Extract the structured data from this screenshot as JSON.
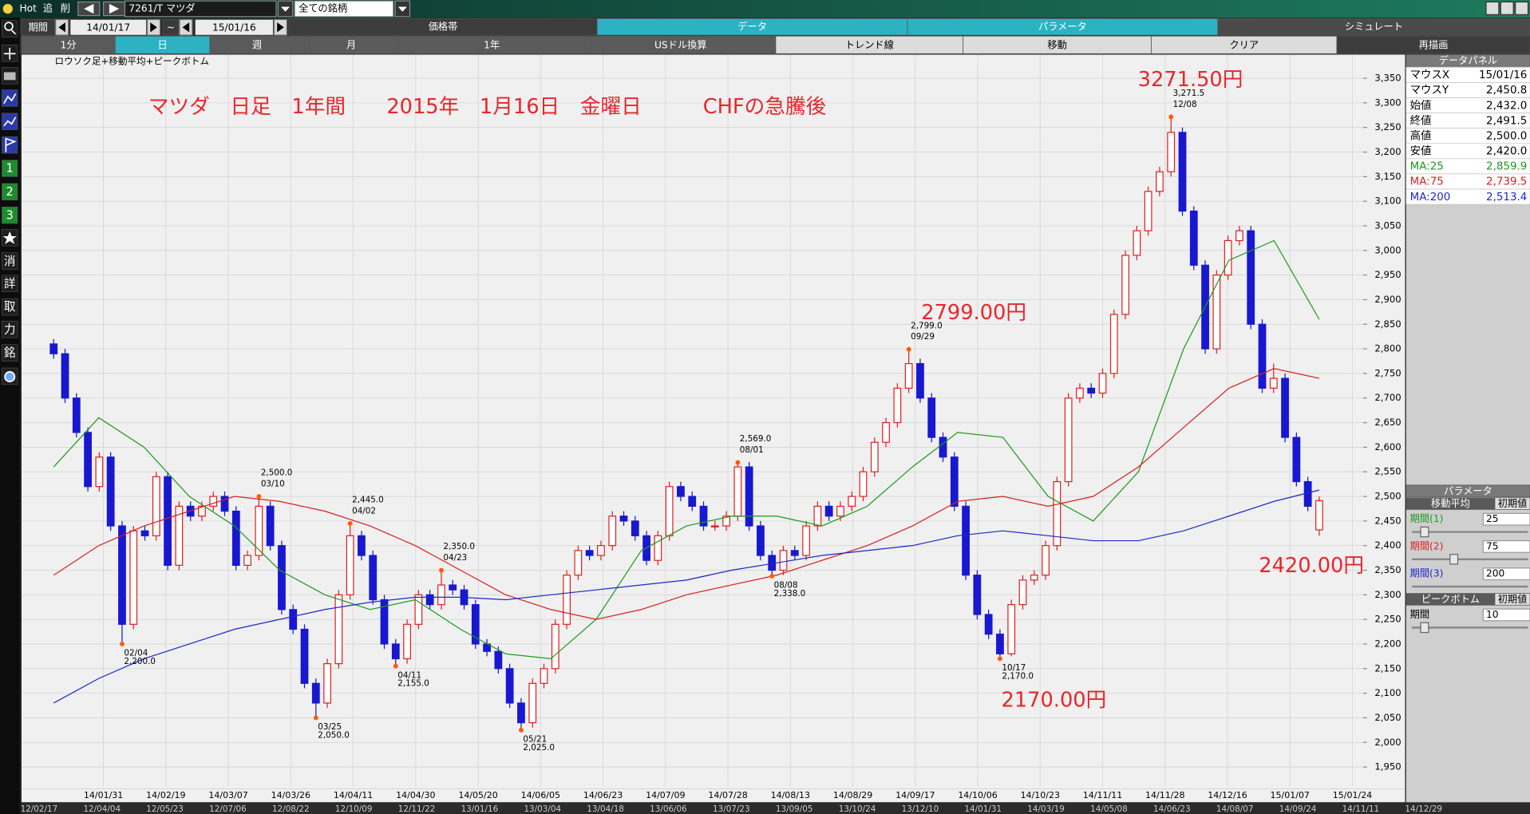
{
  "toolbar": {
    "hot": "Hot",
    "add": "追",
    "delete": "削",
    "symbol": "7261/T マツダ",
    "universe": "全ての銘柄",
    "period_label": "期間",
    "start": "14/01/17",
    "tilde": "~",
    "end": "15/01/16"
  },
  "tabs": [
    "価格帯",
    "データ",
    "パラメータ",
    "シミュレート"
  ],
  "buttons": [
    "1分",
    "日",
    "週",
    "月",
    "1年",
    "USドル換算",
    "トレンド線",
    "移動",
    "クリア",
    "再描画"
  ],
  "sidebar": [
    "1",
    "2",
    "3",
    "消",
    "詳",
    "取",
    "力",
    "銘"
  ],
  "chart_data": {
    "type": "candlestick",
    "subtitle": "ロウソク足+移動平均+ピークボトム",
    "annotations": [
      "マツダ　日足　1年間　　2015年　1月16日　金曜日　　　CHFの急騰後",
      "3271.50円",
      "2799.00円",
      "2170.00円",
      "2420.00円"
    ],
    "xtick_labels": [
      "14/01/31",
      "14/02/19",
      "14/03/07",
      "14/03/26",
      "14/04/11",
      "14/04/30",
      "14/05/20",
      "14/06/05",
      "14/06/23",
      "14/07/09",
      "14/07/28",
      "14/08/13",
      "14/08/29",
      "14/09/17",
      "14/10/06",
      "14/10/23",
      "14/11/11",
      "14/11/28",
      "14/12/16",
      "15/01/07",
      "15/01/24"
    ],
    "ylim": [
      1910,
      3394
    ],
    "yticks": [
      {
        "value": 1950,
        "label": "1,950"
      },
      {
        "value": 2000,
        "label": "2,000"
      },
      {
        "value": 2050,
        "label": "2,050"
      },
      {
        "value": 2100,
        "label": "2,100"
      },
      {
        "value": 2150,
        "label": "2,150"
      },
      {
        "value": 2200,
        "label": "2,200"
      },
      {
        "value": 2250,
        "label": "2,250"
      },
      {
        "value": 2300,
        "label": "2,300"
      },
      {
        "value": 2350,
        "label": "2,350"
      },
      {
        "value": 2400,
        "label": "2,400"
      },
      {
        "value": 2450,
        "label": "2,450"
      },
      {
        "value": 2500,
        "label": "2,500"
      },
      {
        "value": 2550,
        "label": "2,550"
      },
      {
        "value": 2600,
        "label": "2,600"
      },
      {
        "value": 2650,
        "label": "2,650"
      },
      {
        "value": 2700,
        "label": "2,700"
      },
      {
        "value": 2750,
        "label": "2,750"
      },
      {
        "value": 2800,
        "label": "2,800"
      },
      {
        "value": 2850,
        "label": "2,850"
      },
      {
        "value": 2900,
        "label": "2,900"
      },
      {
        "value": 2950,
        "label": "2,950"
      },
      {
        "value": 3000,
        "label": "3,000"
      },
      {
        "value": 3050,
        "label": "3,050"
      },
      {
        "value": 3100,
        "label": "3,100"
      },
      {
        "value": 3150,
        "label": "3,150"
      },
      {
        "value": 3200,
        "label": "3,200"
      },
      {
        "value": 3250,
        "label": "3,250"
      },
      {
        "value": 3300,
        "label": "3,300"
      },
      {
        "value": 3350,
        "label": "3,350"
      }
    ],
    "grid": true,
    "up_color": "#e02020",
    "down_color": "#1818d0",
    "candles": {
      "open": [
        2810,
        2790,
        2700,
        2630,
        2520,
        2580,
        2440,
        2240,
        2430,
        2420,
        2540,
        2360,
        2480,
        2460,
        2480,
        2500,
        2470,
        2360,
        2380,
        2480,
        2400,
        2270,
        2230,
        2120,
        2080,
        2160,
        2300,
        2420,
        2380,
        2290,
        2200,
        2170,
        2240,
        2300,
        2280,
        2320,
        2310,
        2280,
        2200,
        2185,
        2150,
        2080,
        2040,
        2120,
        2150,
        2240,
        2340,
        2390,
        2380,
        2400,
        2460,
        2450,
        2420,
        2370,
        2420,
        2520,
        2500,
        2480,
        2440,
        2440,
        2460,
        2560,
        2440,
        2380,
        2350,
        2390,
        2380,
        2440,
        2480,
        2460,
        2480,
        2500,
        2550,
        2610,
        2650,
        2720,
        2770,
        2700,
        2620,
        2580,
        2480,
        2340,
        2260,
        2220,
        2180,
        2280,
        2330,
        2340,
        2400,
        2530,
        2700,
        2720,
        2710,
        2750,
        2870,
        2990,
        3040,
        3120,
        3160,
        3240,
        3080,
        2970,
        2800,
        2950,
        3020,
        3040,
        2850,
        2720,
        2740,
        2620,
        2530,
        2432
      ],
      "high": [
        2820,
        2800,
        2710,
        2640,
        2590,
        2590,
        2450,
        2440,
        2440,
        2550,
        2550,
        2490,
        2490,
        2490,
        2510,
        2510,
        2480,
        2390,
        2500,
        2490,
        2410,
        2280,
        2240,
        2130,
        2170,
        2310,
        2445,
        2430,
        2390,
        2300,
        2210,
        2250,
        2310,
        2310,
        2350,
        2330,
        2320,
        2290,
        2210,
        2195,
        2160,
        2090,
        2130,
        2160,
        2250,
        2350,
        2400,
        2400,
        2410,
        2470,
        2470,
        2460,
        2430,
        2430,
        2530,
        2530,
        2510,
        2490,
        2450,
        2470,
        2569,
        2570,
        2450,
        2390,
        2400,
        2400,
        2450,
        2490,
        2490,
        2490,
        2510,
        2560,
        2620,
        2660,
        2730,
        2799,
        2780,
        2710,
        2630,
        2590,
        2490,
        2350,
        2270,
        2230,
        2290,
        2340,
        2350,
        2410,
        2540,
        2710,
        2730,
        2730,
        2760,
        2880,
        3000,
        3050,
        3130,
        3170,
        3271.5,
        3250,
        3090,
        2980,
        2960,
        3030,
        3050,
        3050,
        2860,
        2770,
        2750,
        2630,
        2540,
        2500
      ],
      "low": [
        2780,
        2690,
        2620,
        2510,
        2510,
        2430,
        2200,
        2230,
        2410,
        2410,
        2350,
        2350,
        2450,
        2450,
        2470,
        2460,
        2350,
        2350,
        2370,
        2390,
        2260,
        2220,
        2110,
        2050,
        2070,
        2150,
        2290,
        2370,
        2280,
        2190,
        2155,
        2160,
        2230,
        2270,
        2270,
        2300,
        2270,
        2190,
        2175,
        2140,
        2070,
        2025,
        2030,
        2110,
        2140,
        2230,
        2330,
        2370,
        2370,
        2390,
        2440,
        2410,
        2360,
        2360,
        2410,
        2490,
        2470,
        2430,
        2430,
        2430,
        2450,
        2430,
        2370,
        2338,
        2340,
        2370,
        2370,
        2430,
        2450,
        2450,
        2470,
        2490,
        2540,
        2600,
        2640,
        2710,
        2690,
        2610,
        2570,
        2470,
        2330,
        2250,
        2210,
        2170,
        2175,
        2270,
        2320,
        2330,
        2390,
        2520,
        2690,
        2700,
        2700,
        2740,
        2860,
        2980,
        3030,
        3110,
        3150,
        3070,
        2960,
        2790,
        2790,
        2940,
        3010,
        2840,
        2710,
        2710,
        2610,
        2520,
        2470,
        2420
      ],
      "close": [
        2790,
        2700,
        2630,
        2520,
        2580,
        2440,
        2240,
        2430,
        2420,
        2540,
        2360,
        2480,
        2460,
        2480,
        2500,
        2470,
        2360,
        2380,
        2480,
        2400,
        2270,
        2230,
        2120,
        2080,
        2160,
        2300,
        2420,
        2380,
        2290,
        2200,
        2170,
        2240,
        2300,
        2280,
        2320,
        2310,
        2280,
        2200,
        2185,
        2150,
        2080,
        2040,
        2120,
        2150,
        2240,
        2340,
        2390,
        2380,
        2400,
        2460,
        2450,
        2420,
        2370,
        2420,
        2520,
        2500,
        2480,
        2440,
        2440,
        2460,
        2560,
        2440,
        2380,
        2350,
        2390,
        2380,
        2440,
        2480,
        2460,
        2480,
        2500,
        2550,
        2610,
        2650,
        2720,
        2770,
        2700,
        2620,
        2580,
        2480,
        2340,
        2260,
        2220,
        2180,
        2280,
        2330,
        2340,
        2400,
        2530,
        2700,
        2720,
        2710,
        2750,
        2870,
        2990,
        3040,
        3120,
        3160,
        3240,
        3080,
        2970,
        2800,
        2950,
        3020,
        3040,
        2850,
        2720,
        2740,
        2620,
        2530,
        2480,
        2491.5
      ]
    },
    "series": [
      {
        "color": "#1c9a1c",
        "values": [
          2560,
          2660,
          2600,
          2500,
          2440,
          2350,
          2300,
          2270,
          2290,
          2230,
          2180,
          2170,
          2250,
          2390,
          2440,
          2460,
          2460,
          2440,
          2480,
          2560,
          2630,
          2620,
          2500,
          2450,
          2550,
          2800,
          2980,
          3020,
          2860
        ]
      },
      {
        "color": "#d82020",
        "values": [
          2340,
          2400,
          2440,
          2470,
          2500,
          2490,
          2470,
          2440,
          2400,
          2350,
          2300,
          2270,
          2250,
          2270,
          2300,
          2320,
          2340,
          2370,
          2400,
          2440,
          2490,
          2500,
          2480,
          2500,
          2560,
          2640,
          2720,
          2760,
          2740
        ]
      },
      {
        "color": "#1c28c8",
        "values": [
          2080,
          2130,
          2170,
          2200,
          2230,
          2250,
          2270,
          2285,
          2295,
          2295,
          2290,
          2300,
          2310,
          2320,
          2330,
          2350,
          2365,
          2380,
          2390,
          2400,
          2420,
          2430,
          2420,
          2410,
          2410,
          2430,
          2460,
          2490,
          2513
        ]
      }
    ],
    "peaks": [
      {
        "date": "03/10",
        "value": 2500,
        "label": "2,500.0"
      },
      {
        "date": "04/02",
        "value": 2445,
        "label": "2,445.0"
      },
      {
        "date": "04/23",
        "value": 2350,
        "label": "2,350.0"
      },
      {
        "date": "08/01",
        "value": 2569,
        "label": "2,569.0"
      },
      {
        "date": "09/29",
        "value": 2799,
        "label": "2,799.0"
      },
      {
        "date": "12/08",
        "value": 3271.5,
        "label": "3,271.5"
      }
    ],
    "bottoms": [
      {
        "date": "02/04",
        "value": 2200,
        "label": "2,200.0"
      },
      {
        "date": "03/25",
        "value": 2050,
        "label": "2,050.0"
      },
      {
        "date": "04/11",
        "value": 2155,
        "label": "2,155.0"
      },
      {
        "date": "05/21",
        "value": 2025,
        "label": "2,025.0"
      },
      {
        "date": "08/08",
        "value": 2338,
        "label": "2,338.0"
      },
      {
        "date": "10/17",
        "value": 2170,
        "label": "2,170.0"
      }
    ]
  },
  "overview_dates": [
    "12/02/17",
    "12/04/04",
    "12/05/23",
    "12/07/06",
    "12/08/22",
    "12/10/09",
    "12/11/22",
    "13/01/16",
    "13/03/04",
    "13/04/18",
    "13/06/06",
    "13/07/23",
    "13/09/05",
    "13/10/24",
    "13/12/10",
    "14/01/31",
    "14/03/19",
    "14/05/08",
    "14/06/23",
    "14/08/07",
    "14/09/24",
    "14/11/11",
    "14/12/29"
  ],
  "data_panel": {
    "title": "データパネル",
    "rows": [
      [
        "マウスX",
        "15/01/16"
      ],
      [
        "マウスY",
        "2,450.8"
      ],
      [
        "始値",
        "2,432.0"
      ],
      [
        "終値",
        "2,491.5"
      ],
      [
        "高値",
        "2,500.0"
      ],
      [
        "安値",
        "2,420.0"
      ],
      [
        "MA:25",
        "2,859.9"
      ],
      [
        "MA:75",
        "2,739.5"
      ],
      [
        "MA:200",
        "2,513.4"
      ]
    ]
  },
  "parameter_panel": {
    "title": "パラメータ",
    "sections": [
      {
        "title": "移動平均",
        "reset": "初期値",
        "rows": [
          [
            "期間(1)",
            "25"
          ],
          [
            "期間(2)",
            "75"
          ],
          [
            "期間(3)",
            "200"
          ]
        ]
      },
      {
        "title": "ピークボトム",
        "reset": "初期値",
        "rows": [
          [
            "期間",
            "10"
          ]
        ]
      }
    ]
  }
}
